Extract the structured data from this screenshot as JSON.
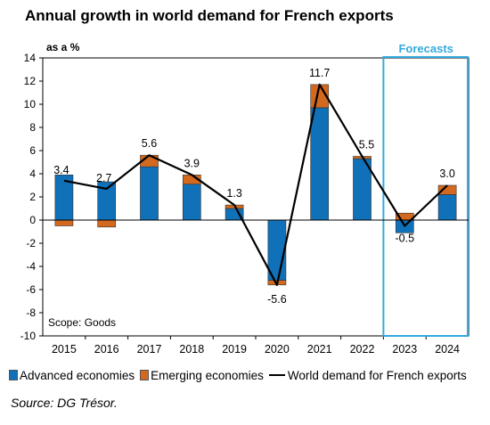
{
  "title": "Annual growth in world demand for French exports",
  "source": "Source: DG Trésor.",
  "colors": {
    "advanced": "#1070b8",
    "emerging": "#d2691e",
    "line": "#000000",
    "forecast_box": "#33aadd"
  },
  "chart_data": {
    "type": "bar",
    "stacked": true,
    "ylabel": "as a %",
    "annotation": "Scope: Goods",
    "forecast_label": "Forecasts",
    "forecast_categories": [
      "2023",
      "2024"
    ],
    "ylim": [
      -10,
      14
    ],
    "yticks": [
      14,
      12,
      10,
      8,
      6,
      4,
      2,
      0,
      -2,
      -4,
      -6,
      -8,
      -10
    ],
    "categories": [
      "2015",
      "2016",
      "2017",
      "2018",
      "2019",
      "2020",
      "2021",
      "2022",
      "2023",
      "2024"
    ],
    "series": [
      {
        "name": "Advanced economies",
        "values": [
          3.9,
          3.3,
          4.6,
          3.1,
          1.0,
          -5.2,
          9.7,
          5.3,
          -1.1,
          2.2
        ]
      },
      {
        "name": "Emerging economies",
        "values": [
          -0.5,
          -0.6,
          1.0,
          0.8,
          0.3,
          -0.4,
          2.0,
          0.2,
          0.6,
          0.8
        ]
      }
    ],
    "line": {
      "name": "World demand for French exports",
      "values": [
        3.4,
        2.7,
        5.6,
        3.9,
        1.3,
        -5.6,
        11.7,
        5.5,
        -0.5,
        3.0
      ],
      "labels": [
        "3.4",
        "2.7",
        "5.6",
        "3.9",
        "1.3",
        "-5.6",
        "11.7",
        "5.5",
        "-0.5",
        "3.0"
      ]
    }
  }
}
